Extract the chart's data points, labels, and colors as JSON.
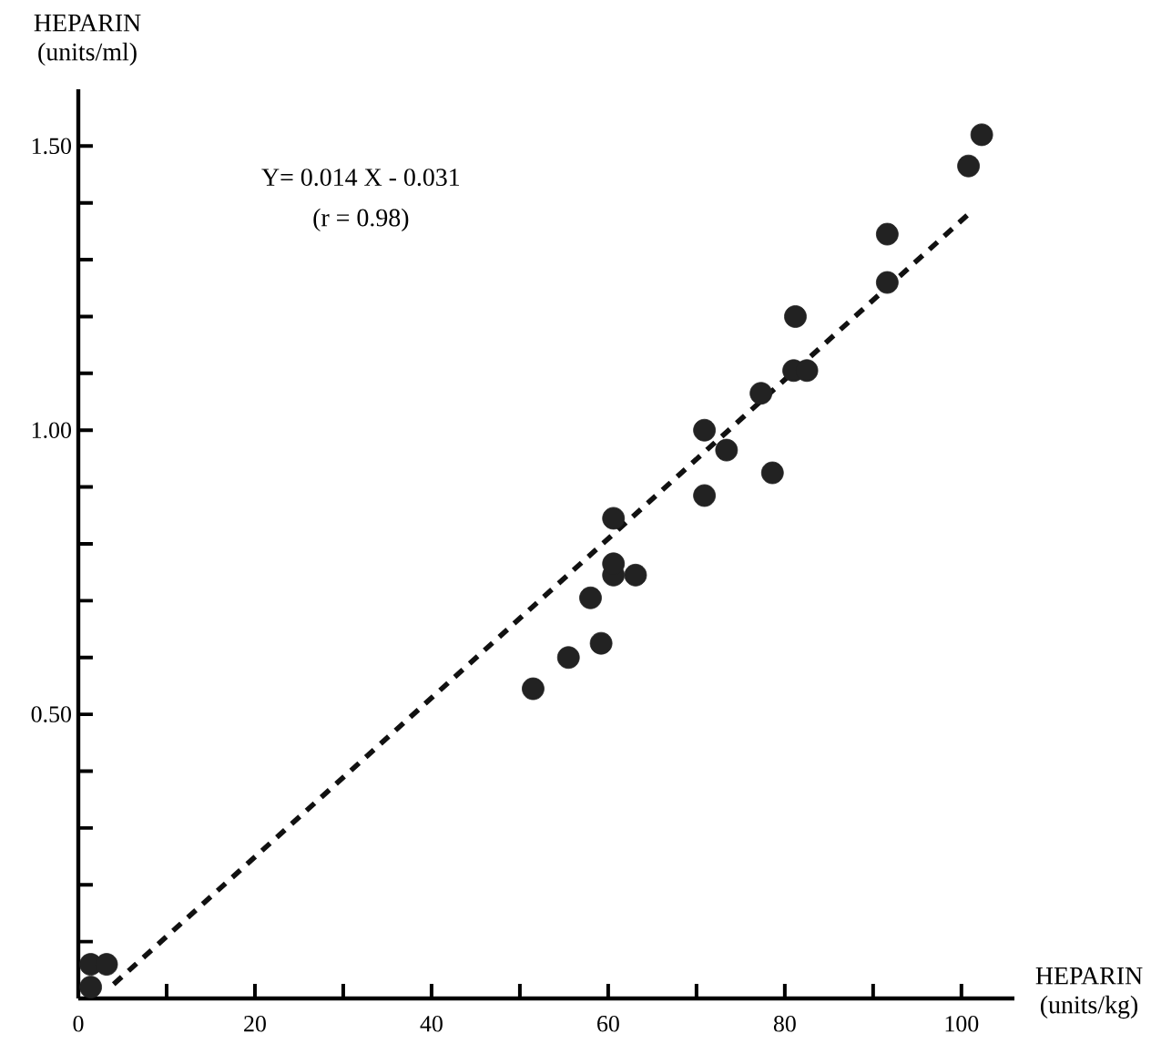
{
  "chart_data": {
    "type": "scatter",
    "xlabel": "HEPARIN (units/kg)",
    "ylabel": "HEPARIN (units/ml)",
    "annotations": [
      "Y= 0.014 X - 0.031",
      "(r = 0.98)"
    ],
    "grid": false,
    "xlim": [
      0,
      106
    ],
    "ylim": [
      0,
      1.6
    ],
    "xticks": [
      0,
      {
        "value": 10,
        "label": null
      },
      20,
      {
        "value": 30,
        "label": null
      },
      40,
      {
        "value": 50,
        "label": null
      },
      60,
      {
        "value": 70,
        "label": null
      },
      80,
      {
        "value": 90,
        "label": null
      },
      100
    ],
    "yticks": [
      {
        "value": 0.1,
        "label": null
      },
      {
        "value": 0.2,
        "label": null
      },
      {
        "value": 0.3,
        "label": null
      },
      {
        "value": 0.4,
        "label": null
      },
      {
        "value": 0.5,
        "label": "0.50"
      },
      {
        "value": 0.6,
        "label": null
      },
      {
        "value": 0.7,
        "label": null
      },
      {
        "value": 0.8,
        "label": null
      },
      {
        "value": 0.9,
        "label": null
      },
      {
        "value": 1.0,
        "label": "1.00"
      },
      {
        "value": 1.1,
        "label": null
      },
      {
        "value": 1.2,
        "label": null
      },
      {
        "value": 1.3,
        "label": null
      },
      {
        "value": 1.4,
        "label": null
      },
      {
        "value": 1.5,
        "label": "1.50"
      }
    ],
    "series": [
      {
        "type": "scatter",
        "marker": "circle",
        "color": "#222222",
        "x": [
          1.4,
          1.4,
          3.2,
          51.5,
          55.5,
          59.2,
          58.0,
          60.6,
          60.6,
          63.1,
          60.6,
          70.9,
          73.4,
          70.9,
          78.6,
          77.3,
          81.0,
          82.5,
          81.2,
          91.6,
          91.6,
          100.8,
          102.3
        ],
        "values": [
          0.02,
          0.06,
          0.06,
          0.545,
          0.6,
          0.625,
          0.705,
          0.745,
          0.765,
          0.745,
          0.845,
          0.885,
          0.965,
          1.0,
          0.925,
          1.065,
          1.105,
          1.105,
          1.2,
          1.26,
          1.345,
          1.465,
          1.52
        ]
      },
      {
        "type": "line",
        "color": "#111111",
        "line_style": "dashed",
        "marker": "none",
        "x": [
          4,
          101
        ],
        "values": [
          0.025,
          1.383
        ]
      }
    ]
  }
}
